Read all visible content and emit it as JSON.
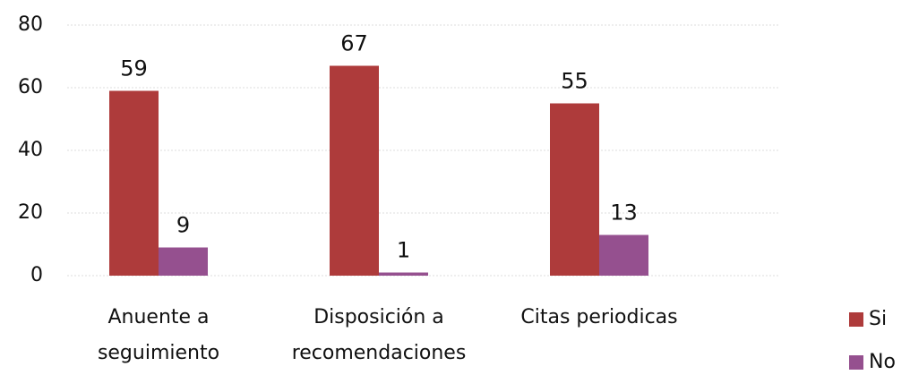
{
  "chart_data": {
    "type": "bar",
    "categories": [
      "Anuente a seguimiento",
      "Disposición a recomendaciones",
      "Citas periodicas"
    ],
    "series": [
      {
        "name": "Si",
        "color": "#ae3b3b",
        "values": [
          59,
          67,
          55
        ]
      },
      {
        "name": "No",
        "color": "#95508f",
        "values": [
          9,
          1,
          13
        ]
      }
    ],
    "ylim": [
      0,
      80
    ],
    "yticks": [
      0,
      20,
      40,
      60,
      80
    ],
    "grid": true
  }
}
